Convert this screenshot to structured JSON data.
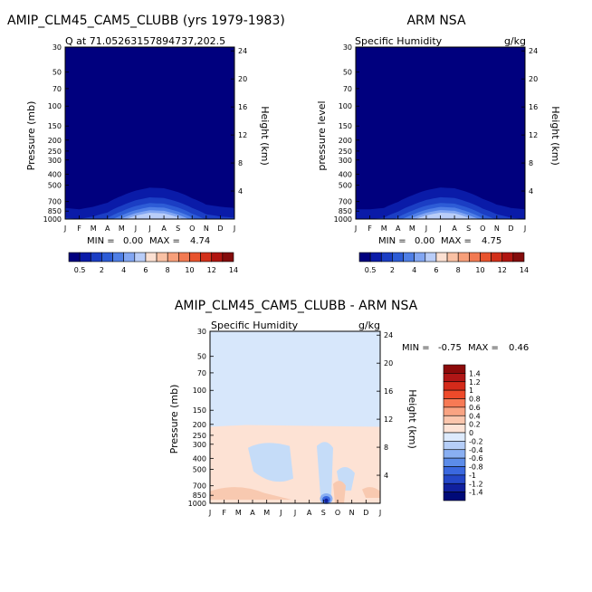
{
  "chart_data": [
    {
      "type": "heatmap",
      "title": "AMIP_CLM45_CAM5_CLUBB (yrs 1979-1983)",
      "subtitle": "Q at 71.05263157894737,202.5",
      "ylabel": "Pressure (mb)",
      "y2label": "Height (km)",
      "x_ticks": [
        "J",
        "F",
        "M",
        "A",
        "M",
        "J",
        "J",
        "A",
        "S",
        "O",
        "N",
        "D",
        "J"
      ],
      "y_ticks": [
        "30",
        "50",
        "70",
        "100",
        "150",
        "200",
        "250",
        "300",
        "400",
        "500",
        "700",
        "850",
        "1000"
      ],
      "y2_ticks": [
        "24",
        "20",
        "16",
        "12",
        "8",
        "4"
      ],
      "min_label": "MIN =",
      "min_value": "0.00",
      "max_label": "MAX =",
      "max_value": "4.74",
      "colorbar_labels": [
        "0.5",
        "2",
        "4",
        "6",
        "8",
        "10",
        "12",
        "14"
      ],
      "monthly_near_surface_q": [
        1.1,
        1.0,
        1.2,
        1.6,
        2.6,
        3.8,
        4.7,
        4.5,
        3.4,
        2.2,
        1.4,
        1.2,
        1.1
      ]
    },
    {
      "type": "heatmap",
      "title": "ARM NSA",
      "subtitle": "Specific Humidity",
      "units": "g/kg",
      "ylabel": "pressure level",
      "y2label": "Height (km)",
      "x_ticks": [
        "J",
        "F",
        "M",
        "A",
        "M",
        "J",
        "J",
        "A",
        "S",
        "O",
        "N",
        "D",
        "J"
      ],
      "y_ticks": [
        "30",
        "50",
        "70",
        "100",
        "150",
        "200",
        "250",
        "300",
        "400",
        "500",
        "700",
        "850",
        "1000"
      ],
      "y2_ticks": [
        "24",
        "20",
        "16",
        "12",
        "8",
        "4"
      ],
      "min_label": "MIN =",
      "min_value": "0.00",
      "max_label": "MAX =",
      "max_value": "4.75",
      "colorbar_labels": [
        "0.5",
        "2",
        "4",
        "6",
        "8",
        "10",
        "12",
        "14"
      ],
      "monthly_near_surface_q": [
        1.0,
        1.0,
        1.1,
        1.7,
        2.7,
        3.9,
        4.75,
        4.5,
        3.3,
        2.1,
        1.4,
        1.1,
        1.0
      ]
    },
    {
      "type": "heatmap",
      "title": "AMIP_CLM45_CAM5_CLUBB - ARM NSA",
      "subtitle": "Specific Humidity",
      "units": "g/kg",
      "ylabel": "Pressure (mb)",
      "y2label": "Height (km)",
      "x_ticks": [
        "J",
        "F",
        "M",
        "A",
        "M",
        "J",
        "J",
        "A",
        "S",
        "O",
        "N",
        "D",
        "J"
      ],
      "y_ticks": [
        "30",
        "50",
        "70",
        "100",
        "150",
        "200",
        "250",
        "300",
        "400",
        "500",
        "700",
        "850",
        "1000"
      ],
      "y2_ticks": [
        "24",
        "20",
        "16",
        "12",
        "8",
        "4"
      ],
      "min_label": "MIN =",
      "min_value": "-0.75",
      "max_label": "MAX =",
      "max_value": "0.46",
      "colorbar_labels": [
        "1.4",
        "1.2",
        "1",
        "0.8",
        "0.6",
        "0.4",
        "0.2",
        "0",
        "-0.2",
        "-0.4",
        "-0.6",
        "-0.8",
        "-1",
        "-1.2",
        "-1.4"
      ]
    }
  ],
  "colors": {
    "seq_levels": [
      "#00007e",
      "#0a1ba8",
      "#1b3ec4",
      "#2d5cd6",
      "#4f7fe6",
      "#82a6f2",
      "#b9cdf8",
      "#fbe0d2",
      "#f9c1a4",
      "#f79f7a",
      "#f27a52",
      "#e8532d",
      "#d2301a",
      "#b01510",
      "#840c0c"
    ],
    "diff_levels": [
      "#8c0a0a",
      "#b01616",
      "#d42a1a",
      "#ee4a2a",
      "#f77a55",
      "#f9a382",
      "#fbc6ad",
      "#fde3d6",
      "#ddeafc",
      "#b5cef8",
      "#89aff2",
      "#5c8ce9",
      "#3a68df",
      "#2447c8",
      "#10209e",
      "#000a78"
    ],
    "diff_upper": "#d7e7fb",
    "diff_lower": "#fde2d4",
    "diff_blue_patch": "#c5dcf8",
    "diff_red_patch": "#f8c9b0"
  }
}
